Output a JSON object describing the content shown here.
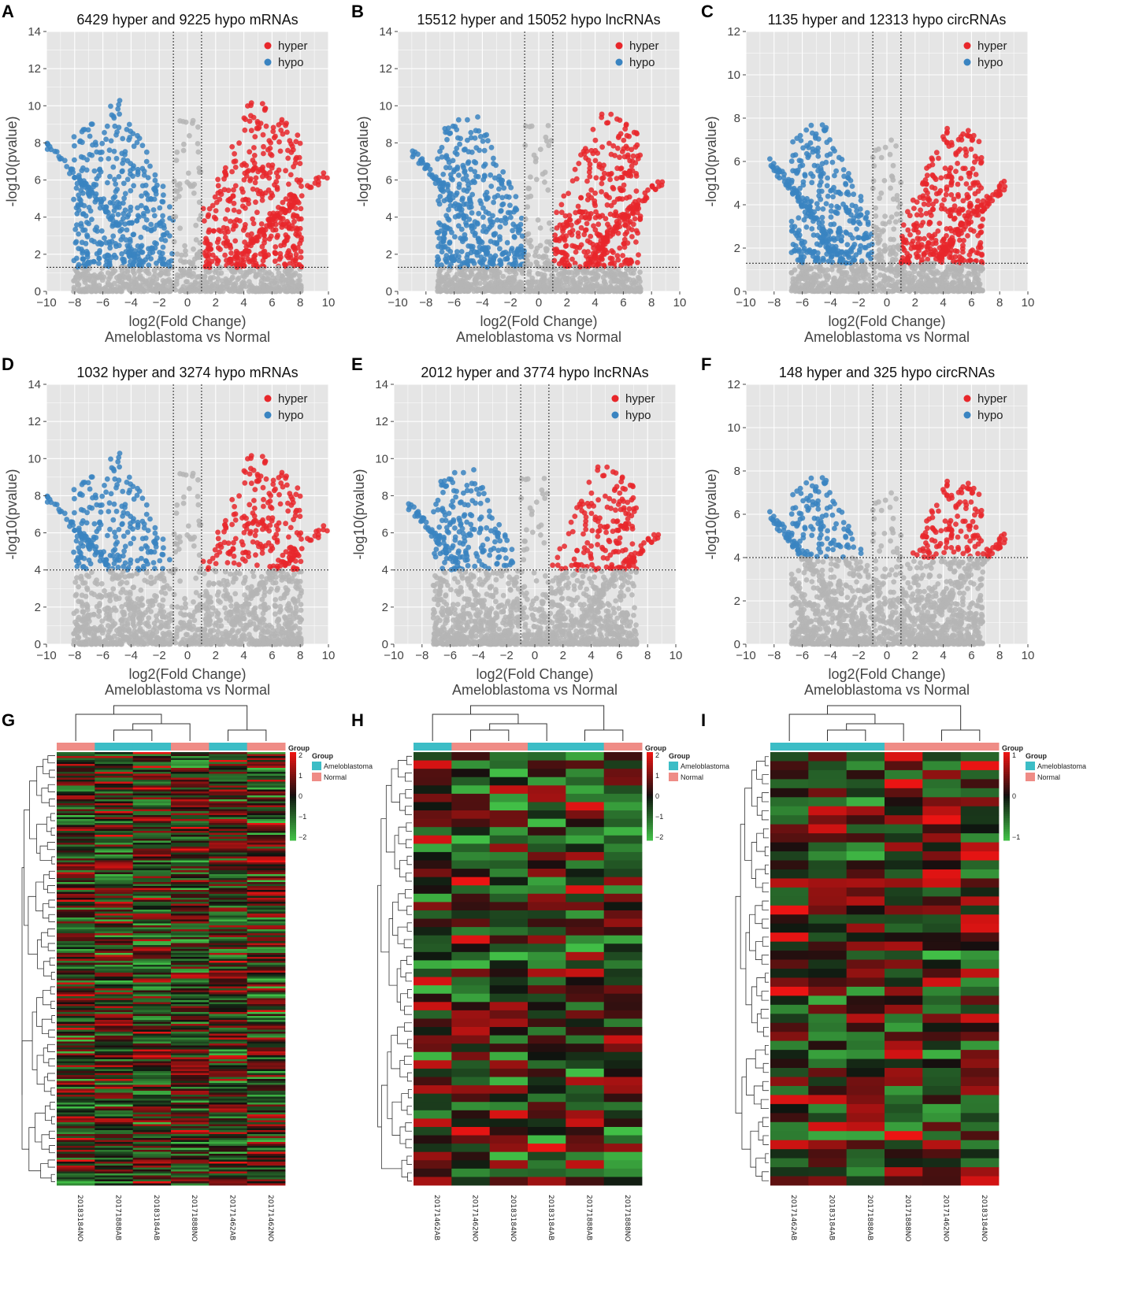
{
  "figure": {
    "colors": {
      "hyper": "#e8272b",
      "hypo": "#3a84c1",
      "ns": "#b5b5b5",
      "panel_bg": "#e5e5e5",
      "grid": "#ffffff",
      "ameloblastoma": "#3cbdc6",
      "normal": "#ef8c86"
    }
  },
  "chart_data": [
    {
      "id": "A",
      "type": "scatter",
      "letter": "A",
      "title": "6429 hyper and 9225 hypo mRNAs",
      "xlabel": "log2(Fold Change)",
      "xlabel2": "Ameloblastoma vs Normal",
      "ylabel": "-log10(pvalue)",
      "xlim": [
        -10,
        10
      ],
      "ylim": [
        0,
        14
      ],
      "xticks": [
        "−10",
        "−8",
        "−6",
        "−4",
        "−2",
        "0",
        "2",
        "4",
        "6",
        "8",
        "10"
      ],
      "yticks": [
        "0",
        "2",
        "4",
        "6",
        "8",
        "10",
        "12",
        "14"
      ],
      "fc_threshold": 1,
      "p_threshold": 1.3,
      "max_y": 10.5,
      "max_x": 9.5,
      "seed": 11,
      "legend": [
        "hyper",
        "hypo"
      ],
      "series": [
        {
          "name": "hyper",
          "count": 6429,
          "color": "#e8272b"
        },
        {
          "name": "hypo",
          "count": 9225,
          "color": "#3a84c1"
        }
      ]
    },
    {
      "id": "B",
      "type": "scatter",
      "letter": "B",
      "title": "15512 hyper and 15052 hypo lncRNAs",
      "xlabel": "log2(Fold Change)",
      "xlabel2": "Ameloblastoma vs Normal",
      "ylabel": "-log10(pvalue)",
      "xlim": [
        -10,
        10
      ],
      "ylim": [
        0,
        14
      ],
      "xticks": [
        "−10",
        "−8",
        "−6",
        "−4",
        "−2",
        "0",
        "2",
        "4",
        "6",
        "8",
        "10"
      ],
      "yticks": [
        "0",
        "2",
        "4",
        "6",
        "8",
        "10",
        "12",
        "14"
      ],
      "fc_threshold": 1,
      "p_threshold": 1.3,
      "max_y": 10,
      "max_x": 8.5,
      "seed": 23,
      "legend": [
        "hyper",
        "hypo"
      ],
      "series": [
        {
          "name": "hyper",
          "count": 15512,
          "color": "#e8272b"
        },
        {
          "name": "hypo",
          "count": 15052,
          "color": "#3a84c1"
        }
      ]
    },
    {
      "id": "C",
      "type": "scatter",
      "letter": "C",
      "title": "1135 hyper and 12313 hypo circRNAs",
      "xlabel": "log2(Fold Change)",
      "xlabel2": "Ameloblastoma vs Normal",
      "ylabel": "-log10(pvalue)",
      "xlim": [
        -10,
        10
      ],
      "ylim": [
        0,
        12
      ],
      "xticks": [
        "−10",
        "−8",
        "−6",
        "−4",
        "−2",
        "0",
        "2",
        "4",
        "6",
        "8",
        "10"
      ],
      "yticks": [
        "0",
        "2",
        "4",
        "6",
        "8",
        "10",
        "12"
      ],
      "fc_threshold": 1,
      "p_threshold": 1.3,
      "max_y": 8.0,
      "max_x": 8,
      "seed": 37,
      "legend": [
        "hyper",
        "hypo"
      ],
      "series": [
        {
          "name": "hyper",
          "count": 1135,
          "color": "#e8272b"
        },
        {
          "name": "hypo",
          "count": 12313,
          "color": "#3a84c1"
        }
      ]
    },
    {
      "id": "D",
      "type": "scatter",
      "letter": "D",
      "title": "1032 hyper and 3274 hypo mRNAs",
      "xlabel": "log2(Fold Change)",
      "xlabel2": "Ameloblastoma vs Normal",
      "ylabel": "-log10(pvalue)",
      "xlim": [
        -10,
        10
      ],
      "ylim": [
        0,
        14
      ],
      "xticks": [
        "−10",
        "−8",
        "−6",
        "−4",
        "−2",
        "0",
        "2",
        "4",
        "6",
        "8",
        "10"
      ],
      "yticks": [
        "0",
        "2",
        "4",
        "6",
        "8",
        "10",
        "12",
        "14"
      ],
      "fc_threshold": 1,
      "p_threshold": 4,
      "max_y": 10.5,
      "max_x": 9.5,
      "seed": 11,
      "legend": [
        "hyper",
        "hypo"
      ],
      "series": [
        {
          "name": "hyper",
          "count": 1032,
          "color": "#e8272b"
        },
        {
          "name": "hypo",
          "count": 3274,
          "color": "#3a84c1"
        }
      ]
    },
    {
      "id": "E",
      "type": "scatter",
      "letter": "E",
      "title": "2012 hyper and 3774 hypo lncRNAs",
      "xlabel": "log2(Fold Change)",
      "xlabel2": "Ameloblastoma vs Normal",
      "ylabel": "-log10(pvalue)",
      "xlim": [
        -10,
        10
      ],
      "ylim": [
        0,
        14
      ],
      "xticks": [
        "−10",
        "−8",
        "−6",
        "−4",
        "−2",
        "0",
        "2",
        "4",
        "6",
        "8",
        "10"
      ],
      "yticks": [
        "0",
        "2",
        "4",
        "6",
        "8",
        "10",
        "12",
        "14"
      ],
      "fc_threshold": 1,
      "p_threshold": 4,
      "max_y": 10,
      "max_x": 8.5,
      "seed": 23,
      "legend": [
        "hyper",
        "hypo"
      ],
      "series": [
        {
          "name": "hyper",
          "count": 2012,
          "color": "#e8272b"
        },
        {
          "name": "hypo",
          "count": 3774,
          "color": "#3a84c1"
        }
      ]
    },
    {
      "id": "F",
      "type": "scatter",
      "letter": "F",
      "title": "148 hyper and 325 hypo circRNAs",
      "xlabel": "log2(Fold Change)",
      "xlabel2": "Ameloblastoma vs Normal",
      "ylabel": "-log10(pvalue)",
      "xlim": [
        -10,
        10
      ],
      "ylim": [
        0,
        12
      ],
      "xticks": [
        "−10",
        "−8",
        "−6",
        "−4",
        "−2",
        "0",
        "2",
        "4",
        "6",
        "8",
        "10"
      ],
      "yticks": [
        "0",
        "2",
        "4",
        "6",
        "8",
        "10",
        "12"
      ],
      "fc_threshold": 1,
      "p_threshold": 4,
      "max_y": 8.0,
      "max_x": 8,
      "seed": 37,
      "legend": [
        "hyper",
        "hypo"
      ],
      "series": [
        {
          "name": "hyper",
          "count": 148,
          "color": "#e8272b"
        },
        {
          "name": "hypo",
          "count": 325,
          "color": "#3a84c1"
        }
      ]
    },
    {
      "id": "G",
      "type": "heatmap",
      "letter": "G",
      "rows": 220,
      "seed": 101,
      "columns": [
        "20183184NO",
        "20171888AB",
        "20183184AB",
        "20171888NO",
        "20171462AB",
        "20171462NO"
      ],
      "groups": [
        "Normal",
        "Ameloblastoma",
        "Ameloblastoma",
        "Normal",
        "Ameloblastoma",
        "Normal"
      ],
      "legend_title": "Group",
      "legend_items": [
        "Ameloblastoma",
        "Normal"
      ],
      "scale_ticks": [
        "2",
        "1",
        "0",
        "−1",
        "−2"
      ]
    },
    {
      "id": "H",
      "type": "heatmap",
      "letter": "H",
      "rows": 52,
      "seed": 202,
      "columns": [
        "20171462AB",
        "20171462NO",
        "20183184NO",
        "20183184AB",
        "20171888AB",
        "20171888NO"
      ],
      "groups": [
        "Ameloblastoma",
        "Normal",
        "Normal",
        "Ameloblastoma",
        "Ameloblastoma",
        "Normal"
      ],
      "legend_title": "Group",
      "legend_items": [
        "Ameloblastoma",
        "Normal"
      ],
      "scale_ticks": [
        "2",
        "1",
        "0",
        "−1",
        "−2"
      ]
    },
    {
      "id": "I",
      "type": "heatmap",
      "letter": "I",
      "rows": 48,
      "seed": 303,
      "columns": [
        "20171462AB",
        "20183184AB",
        "20171888AB",
        "20171888NO",
        "20171462NO",
        "20183184NO"
      ],
      "groups": [
        "Ameloblastoma",
        "Ameloblastoma",
        "Ameloblastoma",
        "Normal",
        "Normal",
        "Normal"
      ],
      "legend_title": "Group",
      "legend_items": [
        "Ameloblastoma",
        "Normal"
      ],
      "scale_ticks": [
        "1",
        "0",
        "−1"
      ]
    }
  ]
}
